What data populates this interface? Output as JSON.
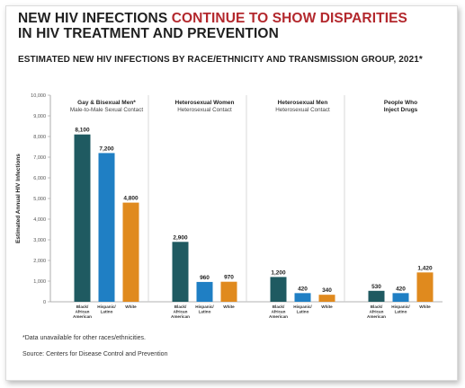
{
  "title": {
    "part1": "NEW HIV INFECTIONS ",
    "accent": "CONTINUE TO SHOW DISPARITIES",
    "part2": "IN HIV TREATMENT AND PREVENTION"
  },
  "subtitle": "ESTIMATED NEW HIV INFECTIONS BY RACE/ETHNICITY AND TRANSMISSION GROUP, 2021*",
  "footnote": "*Data unavailable for other races/ethnicities.",
  "source": "Source: Centers for Disease Control and Prevention",
  "colors": {
    "black_african_american": "#1f5a61",
    "hispanic_latino": "#1f7fc4",
    "white": "#e08a1e"
  },
  "chart_data": {
    "type": "bar",
    "ylabel": "Estimated Annual HIV Infections",
    "ylim": [
      0,
      10000
    ],
    "yticks": [
      "0",
      "1,000",
      "2,000",
      "3,000",
      "4,000",
      "5,000",
      "6,000",
      "7,000",
      "8,000",
      "9,000",
      "10,000"
    ],
    "grid": false,
    "groups": [
      {
        "title": "Gay & Bisexual Men*",
        "subtitle": "Male-to-Male Sexual Contact",
        "bars": [
          {
            "category": "Black/ African American",
            "value": 8100,
            "label": "8,100"
          },
          {
            "category": "Hispanic/ Latino",
            "value": 7200,
            "label": "7,200"
          },
          {
            "category": "White",
            "value": 4800,
            "label": "4,800"
          }
        ]
      },
      {
        "title": "Heterosexual Women",
        "subtitle": "Heterosexual Contact",
        "bars": [
          {
            "category": "Black/ African American",
            "value": 2900,
            "label": "2,900"
          },
          {
            "category": "Hispanic/ Latino",
            "value": 960,
            "label": "960"
          },
          {
            "category": "White",
            "value": 970,
            "label": "970"
          }
        ]
      },
      {
        "title": "Heterosexual Men",
        "subtitle": "Heterosexual Contact",
        "bars": [
          {
            "category": "Black/ African American",
            "value": 1200,
            "label": "1,200"
          },
          {
            "category": "Hispanic/ Latino",
            "value": 420,
            "label": "420"
          },
          {
            "category": "White",
            "value": 340,
            "label": "340"
          }
        ]
      },
      {
        "title": "People Who Inject Drugs",
        "subtitle": "",
        "bars": [
          {
            "category": "Black/ African American",
            "value": 530,
            "label": "530"
          },
          {
            "category": "Hispanic/ Latino",
            "value": 420,
            "label": "420"
          },
          {
            "category": "White",
            "value": 1420,
            "label": "1,420"
          }
        ]
      }
    ]
  }
}
